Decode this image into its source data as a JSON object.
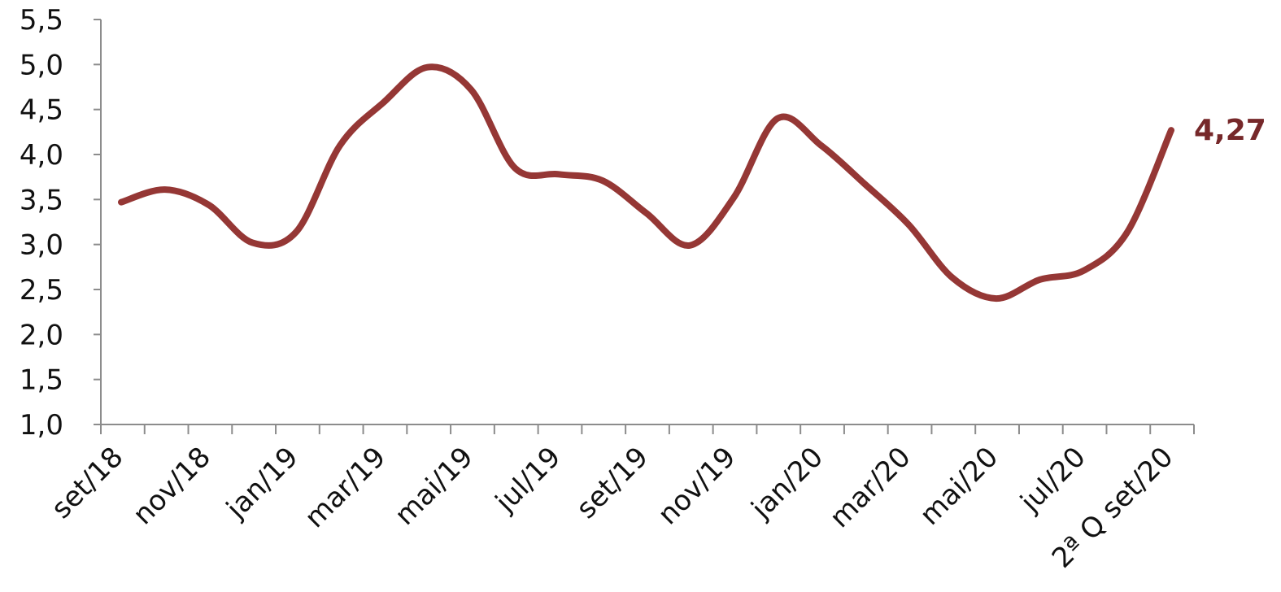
{
  "chart_data": {
    "type": "line",
    "title": "",
    "xlabel": "",
    "ylabel": "",
    "ylim": [
      1.0,
      5.5
    ],
    "y_ticks": [
      "1,0",
      "1,5",
      "2,0",
      "2,5",
      "3,0",
      "3,5",
      "4,0",
      "4,5",
      "5,0",
      "5,5"
    ],
    "x_labels": [
      "set/18",
      "nov/18",
      "jan/19",
      "mar/19",
      "mai/19",
      "jul/19",
      "set/19",
      "nov/19",
      "jan/20",
      "mar/20",
      "mai/20",
      "jul/20",
      "2ª Q set/20"
    ],
    "grid": false,
    "legend": "none",
    "series": [
      {
        "color": "#953735",
        "values": [
          3.47,
          3.61,
          3.44,
          3.02,
          3.14,
          4.1,
          4.58,
          4.97,
          4.72,
          3.85,
          3.78,
          3.71,
          3.35,
          2.99,
          3.52,
          4.4,
          4.1,
          3.67,
          3.22,
          2.63,
          2.4,
          2.61,
          2.71,
          3.14,
          4.27
        ]
      }
    ],
    "end_label": "4,27"
  }
}
